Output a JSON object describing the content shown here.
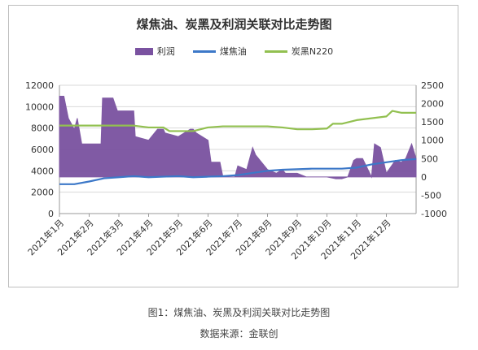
{
  "chart_data": {
    "type": "combo",
    "title": "煤焦油、炭黑及利润关联对比走势图",
    "legend": [
      "利润",
      "煤焦油",
      "炭黑N220"
    ],
    "legend_position": "top",
    "y_left": {
      "min": 0,
      "max": 12000,
      "step": 2000,
      "ticks": [
        "0",
        "2000",
        "4000",
        "6000",
        "8000",
        "10000",
        "12000"
      ]
    },
    "y_right": {
      "min": -1000,
      "max": 2500,
      "step": 500,
      "ticks": [
        "-1000",
        "-500",
        "0",
        "500",
        "1000",
        "1500",
        "2000",
        "2500"
      ]
    },
    "x_labels": [
      "2021年1月",
      "2021年2月",
      "2021年3月",
      "2021年4月",
      "2021年5月",
      "2021年6月",
      "2021年7月",
      "2021年8月",
      "2021年9月",
      "2021年10月",
      "2021年11月",
      "2021年12月"
    ],
    "grid": true,
    "series": [
      {
        "name": "利润",
        "type": "area",
        "axis": "right",
        "color": "#7a52a0",
        "x": [
          0.0,
          0.15,
          0.3,
          0.5,
          0.6,
          0.75,
          1.0,
          1.4,
          1.45,
          1.8,
          1.95,
          2.5,
          2.55,
          3.0,
          3.3,
          3.5,
          3.55,
          4.0,
          4.4,
          4.5,
          4.6,
          5.0,
          5.1,
          5.4,
          5.5,
          5.9,
          6.0,
          6.3,
          6.5,
          6.6,
          7.0,
          7.3,
          7.5,
          7.6,
          8.0,
          8.3,
          8.6,
          9.0,
          9.3,
          9.5,
          9.7,
          9.9,
          10.0,
          10.2,
          10.5,
          10.6,
          10.8,
          11.0,
          11.3,
          11.5,
          11.65,
          11.85,
          12.0
        ],
        "values": [
          2200,
          2200,
          1600,
          1300,
          1600,
          900,
          900,
          900,
          2150,
          2150,
          1800,
          1800,
          1100,
          1000,
          1300,
          1300,
          1200,
          1100,
          1300,
          1300,
          1200,
          1000,
          400,
          400,
          0,
          0,
          300,
          200,
          800,
          600,
          200,
          100,
          200,
          100,
          100,
          0,
          0,
          0,
          -50,
          -50,
          0,
          450,
          500,
          500,
          0,
          900,
          800,
          100,
          450,
          400,
          500,
          900,
          500
        ]
      },
      {
        "name": "煤焦油",
        "type": "line",
        "axis": "left",
        "color": "#3c78c8",
        "x": [
          0.0,
          0.5,
          1.0,
          1.5,
          2.0,
          2.5,
          3.0,
          3.5,
          4.0,
          4.5,
          5.0,
          5.5,
          6.0,
          6.5,
          7.0,
          7.5,
          8.0,
          8.5,
          9.0,
          9.5,
          10.0,
          10.5,
          11.0,
          11.5,
          12.0
        ],
        "values": [
          2750,
          2750,
          3000,
          3300,
          3400,
          3500,
          3400,
          3450,
          3500,
          3400,
          3450,
          3500,
          3600,
          3800,
          4000,
          4100,
          4150,
          4200,
          4200,
          4200,
          4300,
          4600,
          4800,
          5000,
          5100
        ]
      },
      {
        "name": "炭黑N220",
        "type": "line",
        "axis": "right",
        "color": "#92c050",
        "x": [
          0.0,
          0.5,
          1.0,
          1.5,
          2.0,
          2.5,
          3.0,
          3.5,
          3.7,
          4.0,
          4.5,
          5.0,
          5.5,
          6.0,
          6.5,
          7.0,
          7.5,
          8.0,
          8.5,
          9.0,
          9.2,
          9.5,
          10.0,
          10.5,
          11.0,
          11.2,
          11.5,
          12.0
        ],
        "values": [
          1400,
          1400,
          1400,
          1400,
          1400,
          1400,
          1350,
          1350,
          1250,
          1250,
          1250,
          1350,
          1380,
          1380,
          1380,
          1380,
          1350,
          1300,
          1300,
          1320,
          1450,
          1450,
          1550,
          1600,
          1650,
          1800,
          1750,
          1750
        ]
      }
    ]
  },
  "caption": {
    "figure": "图1：煤焦油、炭黑及利润关联对比走势图",
    "source": "数据来源：金联创"
  }
}
